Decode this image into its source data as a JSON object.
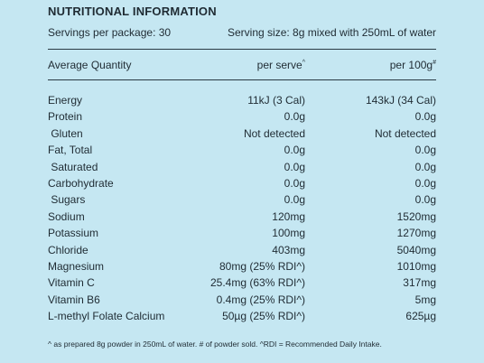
{
  "title": "NUTRITIONAL INFORMATION",
  "servings": "Servings per package: 30",
  "serving_size": "Serving size: 8g mixed with 250mL of water",
  "table": {
    "header": [
      {
        "text": "Average Quantity"
      },
      {
        "text": "per serve",
        "sup": "^"
      },
      {
        "text": "per 100g",
        "sup": "#"
      }
    ],
    "rows": [
      [
        "Energy",
        "11kJ (3 Cal)",
        "143kJ (34 Cal)"
      ],
      [
        "Protein",
        "0.0g",
        "0.0g"
      ],
      [
        " Gluten",
        "Not detected",
        "Not detected"
      ],
      [
        "Fat, Total",
        "0.0g",
        "0.0g"
      ],
      [
        " Saturated",
        "0.0g",
        "0.0g"
      ],
      [
        "Carbohydrate",
        "0.0g",
        "0.0g"
      ],
      [
        " Sugars",
        "0.0g",
        "0.0g"
      ],
      [
        "Sodium",
        "120mg",
        "1520mg"
      ],
      [
        "Potassium",
        "100mg",
        "1270mg"
      ],
      [
        "Chloride",
        "403mg",
        "5040mg"
      ],
      [
        "Magnesium",
        "80mg (25% RDI^)",
        "1010mg"
      ],
      [
        "Vitamin C",
        "25.4mg (63% RDI^)",
        "317mg"
      ],
      [
        "Vitamin B6",
        "0.4mg (25% RDI^)",
        "5mg"
      ],
      [
        "L-methyl Folate Calcium",
        "50µg (25% RDI^)",
        "625µg"
      ]
    ]
  },
  "footnote": "^ as prepared 8g powder in 250mL of water. # of powder sold. ^RDI = Recommended Daily Intake."
}
